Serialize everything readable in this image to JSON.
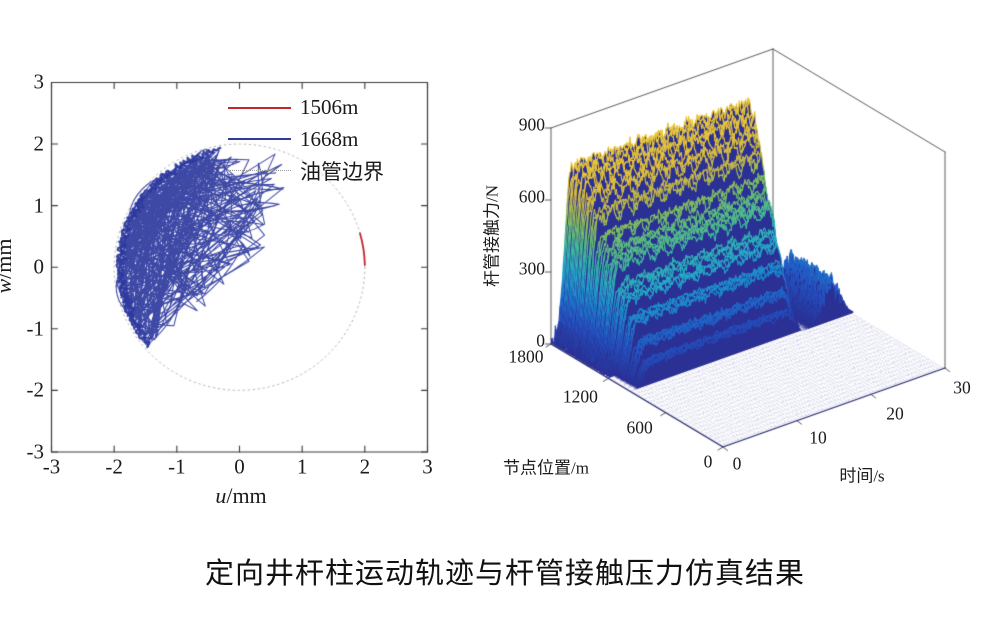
{
  "page": {
    "background": "#ffffff",
    "caption": "定向井杆柱运动轨迹与杆管接触压力仿真结果"
  },
  "chart_data": [
    {
      "id": "rod-centre-trajectory",
      "type": "line",
      "title": "",
      "xlabel": "u/mm",
      "ylabel": "w/mm",
      "xlabel_var": "u",
      "xlabel_rest": "/mm",
      "ylabel_var": "w",
      "ylabel_rest": "/mm",
      "xlim": [
        -3,
        3
      ],
      "ylim": [
        -3,
        3
      ],
      "xticks": [
        -3,
        -2,
        -1,
        0,
        1,
        2,
        3
      ],
      "yticks": [
        3,
        2,
        1,
        0,
        -1,
        -2,
        -3
      ],
      "grid": false,
      "legend_position": "top-right",
      "boundary": {
        "name": "油管边界",
        "shape": "dotted-circle",
        "center_mm": [
          0,
          0
        ],
        "radius_mm": 2,
        "color": "#b4b4b4"
      },
      "series": [
        {
          "name": "1506m",
          "color": "#c1272d",
          "shape": "arc",
          "radius_mm": 2,
          "angle_deg_range": [
            1,
            16
          ],
          "description": "short red arc lying on the tubing boundary near (2, 0.3) mm"
        },
        {
          "name": "1668m",
          "color": "#2e3a9e",
          "shape": "random-whirl",
          "seed": 13,
          "waypoints": 430,
          "u_range_mm": [
            -2,
            0.8
          ],
          "w_range_mm": [
            -1.5,
            1.9
          ],
          "description": "dense tangled orbit filling the left half of the tubing boundary circle, hugging the boundary between about 99° and 222°, reaching u≈0.8 mm in the upper half"
        },
        {
          "name": "油管边界",
          "color": "#b4b4b4",
          "shape": "dotted-circle",
          "radius_mm": 2,
          "description": "tubing boundary, dotted circle of radius 2 mm centered at the origin"
        }
      ]
    },
    {
      "id": "rod-tubing-contact-force-surface",
      "type": "heatmap",
      "subtype": "3d-surface-waterfall",
      "title": "",
      "xlabel": "时间/s",
      "ylabel": "节点位置/m",
      "zlabel": "杆管接触力/N",
      "xlim": [
        0,
        30
      ],
      "ylim": [
        0,
        1800
      ],
      "zlim": [
        0,
        900
      ],
      "xticks": [
        0,
        10,
        20,
        30
      ],
      "yticks": [
        1800,
        1200,
        600,
        0
      ],
      "zticks": [
        900,
        600,
        300,
        0
      ],
      "floor_color": "#2b3094",
      "colormap": [
        "#2b3094",
        "#2455c4",
        "#1d86cf",
        "#26adc8",
        "#3fbd9b",
        "#7fc35f",
        "#c9bb45",
        "#e9c636",
        "#edc93a"
      ],
      "colormap_positions": [
        0,
        0.16,
        0.3,
        0.42,
        0.55,
        0.68,
        0.8,
        0.9,
        1
      ],
      "description": "Contact force ≈0 N for node positions below ~960 m; a stepped plateau of strands rises to ~700 N for the deepest nodes (1500–1800 m), switching on at t≈1–3 s and collapsing between t≈21 s (shallower rows) and ~29 s (deepest rows); a small late ridge of ~190 N appears for positions 950–1400 m around t≈27 s.",
      "height_bands_m_N": [
        [
          1720,
          1800,
          700
        ],
        [
          1640,
          1720,
          660
        ],
        [
          1560,
          1640,
          615
        ],
        [
          1500,
          1560,
          555
        ],
        [
          1440,
          1500,
          480
        ],
        [
          1380,
          1440,
          440
        ],
        [
          1300,
          1380,
          415
        ],
        [
          1240,
          1300,
          330
        ],
        [
          1180,
          1240,
          300
        ],
        [
          1100,
          1180,
          230
        ],
        [
          1030,
          1100,
          150
        ],
        [
          960,
          1030,
          90
        ]
      ],
      "rise_time_s": [
        0.6,
        2.8
      ],
      "fall_start_s_range": [
        21,
        26.5
      ],
      "fall_pos_range_m": [
        960,
        1800
      ],
      "fall_width_s": 2.2,
      "late_bump": {
        "pos_range_m": [
          950,
          1400
        ],
        "center_s": 27,
        "sigma_s": 1.7,
        "amp_N": 190
      },
      "noise_seed": 5
    }
  ]
}
